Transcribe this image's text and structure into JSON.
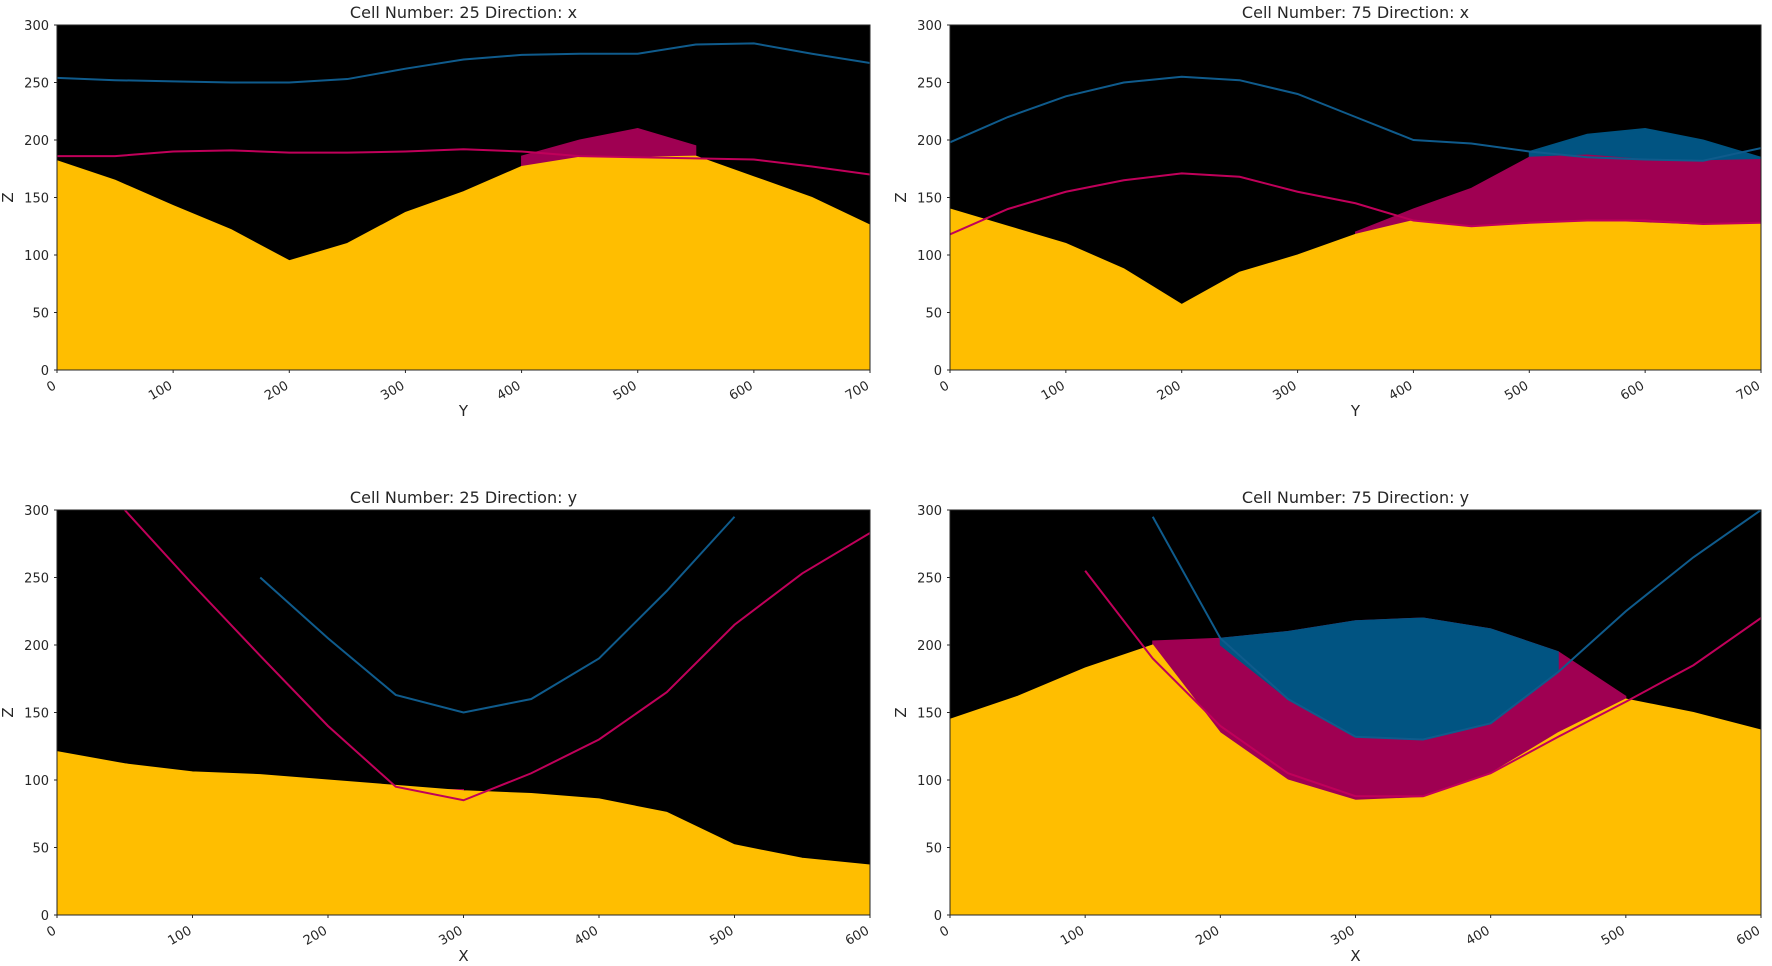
{
  "chart_data": [
    {
      "type": "area",
      "title": "Cell Number: 25 Direction: x",
      "x_label": "Y",
      "y_label": "Z",
      "facecolor": "#000000",
      "x": [
        0,
        50,
        100,
        150,
        200,
        250,
        300,
        350,
        400,
        450,
        500,
        550,
        600,
        650,
        700
      ],
      "xlim": [
        0,
        700
      ],
      "ylim": [
        0,
        300
      ],
      "xticks": [
        0,
        100,
        200,
        300,
        400,
        500,
        600,
        700
      ],
      "yticks": [
        0,
        50,
        100,
        150,
        200,
        250,
        300
      ],
      "areas": [
        {
          "color": "#9f0052",
          "values": [
            null,
            null,
            null,
            null,
            null,
            null,
            null,
            null,
            186,
            200,
            210,
            195,
            null,
            null,
            null
          ]
        },
        {
          "color": "#ffbe00",
          "values": [
            182,
            165,
            143,
            122,
            95,
            110,
            137,
            155,
            177,
            185,
            185,
            186,
            168,
            150,
            126
          ]
        }
      ],
      "series": [
        {
          "color": "#c0005a",
          "values": [
            186,
            186,
            190,
            191,
            189,
            189,
            190,
            192,
            190,
            186,
            185,
            184,
            183,
            177,
            170
          ]
        },
        {
          "color": "#0f5b8c",
          "values": [
            254,
            252,
            251,
            250,
            250,
            253,
            262,
            270,
            274,
            275,
            275,
            283,
            284,
            275,
            267
          ]
        }
      ]
    },
    {
      "type": "area",
      "title": "Cell Number: 75 Direction: x",
      "x_label": "Y",
      "y_label": "Z",
      "facecolor": "#000000",
      "x": [
        0,
        50,
        100,
        150,
        200,
        250,
        300,
        350,
        400,
        450,
        500,
        550,
        600,
        650,
        700
      ],
      "xlim": [
        0,
        700
      ],
      "ylim": [
        0,
        300
      ],
      "xticks": [
        0,
        100,
        200,
        300,
        400,
        500,
        600,
        700
      ],
      "yticks": [
        0,
        50,
        100,
        150,
        200,
        250,
        300
      ],
      "areas": [
        {
          "color": "#015482",
          "values": [
            null,
            null,
            null,
            null,
            null,
            null,
            null,
            null,
            null,
            null,
            190,
            205,
            210,
            200,
            185
          ]
        },
        {
          "color": "#9f0052",
          "values": [
            null,
            null,
            null,
            null,
            null,
            null,
            null,
            120,
            140,
            158,
            185,
            187,
            183,
            182,
            183
          ]
        },
        {
          "color": "#ffbe00",
          "values": [
            140,
            125,
            110,
            88,
            57,
            85,
            100,
            118,
            130,
            125,
            128,
            130,
            128,
            126,
            128
          ]
        }
      ],
      "series": [
        {
          "color": "#c0005a",
          "values": [
            118,
            140,
            155,
            165,
            171,
            168,
            155,
            145,
            130,
            125,
            128,
            130,
            130,
            127,
            128
          ]
        },
        {
          "color": "#0f5b8c",
          "values": [
            198,
            220,
            238,
            250,
            255,
            252,
            240,
            220,
            200,
            197,
            190,
            185,
            183,
            182,
            193
          ]
        }
      ]
    },
    {
      "type": "area",
      "title": "Cell Number: 25 Direction: y",
      "x_label": "X",
      "y_label": "Z",
      "facecolor": "#000000",
      "x": [
        0,
        50,
        100,
        150,
        200,
        250,
        300,
        350,
        400,
        450,
        500,
        550,
        600
      ],
      "xlim": [
        0,
        600
      ],
      "ylim": [
        0,
        300
      ],
      "xticks": [
        0,
        100,
        200,
        300,
        400,
        500,
        600
      ],
      "yticks": [
        0,
        50,
        100,
        150,
        200,
        250,
        300
      ],
      "areas": [
        {
          "color": "#9f0052",
          "values": [
            null,
            null,
            null,
            null,
            null,
            93,
            93,
            null,
            null,
            null,
            null,
            null,
            null
          ]
        },
        {
          "color": "#ffbe00",
          "values": [
            121,
            112,
            106,
            104,
            100,
            96,
            92,
            90,
            86,
            76,
            52,
            42,
            37
          ]
        }
      ],
      "series": [
        {
          "color": "#c0005a",
          "values": [
            null,
            300,
            245,
            192,
            140,
            95,
            85,
            105,
            130,
            165,
            215,
            253,
            283
          ]
        },
        {
          "color": "#0f5b8c",
          "values": [
            null,
            null,
            null,
            250,
            205,
            163,
            150,
            160,
            190,
            240,
            295,
            null,
            null
          ]
        }
      ]
    },
    {
      "type": "area",
      "title": "Cell Number: 75 Direction: y",
      "x_label": "X",
      "y_label": "Z",
      "facecolor": "#000000",
      "x": [
        0,
        50,
        100,
        150,
        200,
        250,
        300,
        350,
        400,
        450,
        500,
        550,
        600
      ],
      "xlim": [
        0,
        600
      ],
      "ylim": [
        0,
        300
      ],
      "xticks": [
        0,
        100,
        200,
        300,
        400,
        500,
        600
      ],
      "yticks": [
        0,
        50,
        100,
        150,
        200,
        250,
        300
      ],
      "areas": [
        {
          "color": "#9f0052",
          "values": [
            null,
            null,
            null,
            203,
            205,
            210,
            218,
            220,
            212,
            195,
            162,
            null,
            null
          ]
        },
        {
          "color": "#015482",
          "values": [
            null,
            null,
            null,
            null,
            205,
            210,
            218,
            220,
            212,
            195,
            null,
            null,
            null
          ],
          "base": [
            null,
            null,
            null,
            null,
            200,
            160,
            132,
            130,
            142,
            180,
            null,
            null,
            null
          ]
        },
        {
          "color": "#ffbe00",
          "values": [
            145,
            162,
            183,
            200,
            135,
            100,
            85,
            87,
            105,
            135,
            160,
            150,
            137
          ]
        }
      ],
      "series": [
        {
          "color": "#c0005a",
          "values": [
            null,
            null,
            255,
            190,
            140,
            105,
            88,
            88,
            105,
            132,
            158,
            185,
            220
          ]
        },
        {
          "color": "#0f5b8c",
          "values": [
            null,
            null,
            null,
            295,
            205,
            160,
            132,
            130,
            142,
            180,
            225,
            265,
            300
          ]
        }
      ]
    }
  ]
}
